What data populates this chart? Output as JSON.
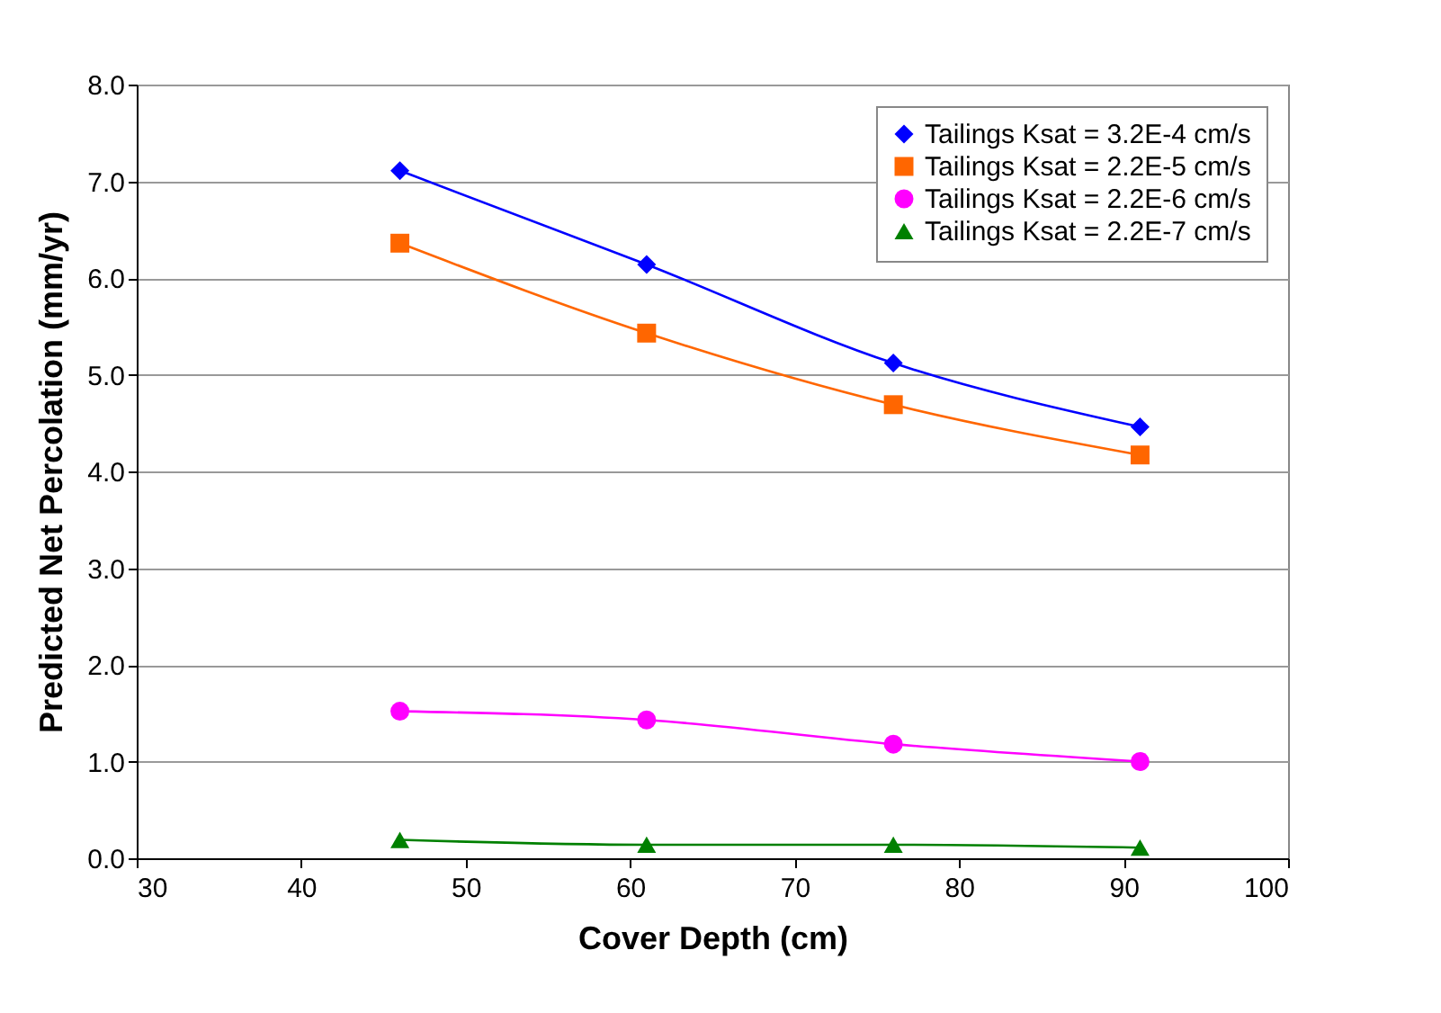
{
  "chart_data": {
    "type": "line",
    "xlabel": "Cover Depth (cm)",
    "ylabel": "Predicted Net Percolation (mm/yr)",
    "x": [
      46,
      61,
      76,
      91
    ],
    "series": [
      {
        "name": "Tailings Ksat = 3.2E-4 cm/s",
        "color": "#0000ff",
        "marker": "diamond",
        "values": [
          7.11,
          6.14,
          5.12,
          4.46
        ]
      },
      {
        "name": "Tailings Ksat = 2.2E-5 cm/s",
        "color": "#ff6600",
        "marker": "square",
        "values": [
          6.36,
          5.43,
          4.69,
          4.17
        ]
      },
      {
        "name": "Tailings Ksat = 2.2E-6 cm/s",
        "color": "#ff00ff",
        "marker": "circle",
        "values": [
          1.52,
          1.43,
          1.18,
          1.0
        ]
      },
      {
        "name": "Tailings Ksat = 2.2E-7 cm/s",
        "color": "#008000",
        "marker": "triangle",
        "values": [
          0.19,
          0.14,
          0.14,
          0.11
        ]
      }
    ],
    "xlim": [
      30,
      100
    ],
    "xticks": [
      30,
      40,
      50,
      60,
      70,
      80,
      90,
      100
    ],
    "ylim": [
      0,
      8
    ],
    "yticks": [
      {
        "value": 0,
        "label": "0.0"
      },
      {
        "value": 1,
        "label": "1.0"
      },
      {
        "value": 2,
        "label": "2.0"
      },
      {
        "value": 3,
        "label": "3.0"
      },
      {
        "value": 4,
        "label": "4.0"
      },
      {
        "value": 5,
        "label": "5.0"
      },
      {
        "value": 6,
        "label": "6.0"
      },
      {
        "value": 7,
        "label": "7.0"
      },
      {
        "value": 8,
        "label": "8.0"
      }
    ],
    "grid": "y",
    "legend": "top right",
    "line_style": "solid"
  }
}
